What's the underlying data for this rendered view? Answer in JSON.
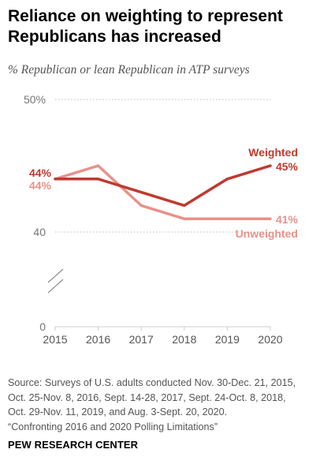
{
  "title_lines": [
    "Reliance on weighting to represent",
    "Republicans has increased"
  ],
  "subtitle": "% Republican or lean Republican in ATP surveys",
  "source_lines": [
    "Source: Surveys of U.S. adults conducted Nov. 30-Dec. 21, 2015,",
    "Oct. 25-Nov. 8, 2016, Sept. 14-28, 2017, Sept. 24-Oct. 8, 2018,",
    "Oct. 29-Nov. 11, 2019, and Aug. 3-Sept. 20, 2020.",
    "“Confronting 2016 and 2020 Polling Limitations”"
  ],
  "organization": "PEW RESEARCH CENTER",
  "colors": {
    "weighted": "#c0392f",
    "unweighted": "#e8928a",
    "grid": "#bcbcbc",
    "axis_label": "#777777",
    "axis_line": "#cccccc"
  },
  "chart_data": {
    "type": "line",
    "x": [
      2015,
      2016,
      2017,
      2018,
      2019,
      2020
    ],
    "y_ticks": [
      "50%",
      "40",
      "0"
    ],
    "y_axis_break": true,
    "series": [
      {
        "name": "Weighted",
        "values": [
          44,
          44,
          43,
          42,
          44,
          45
        ],
        "start_label": "44%",
        "end_label": "45%",
        "color": "#c0392f"
      },
      {
        "name": "Unweighted",
        "values": [
          44,
          45,
          42,
          41,
          41,
          41
        ],
        "start_label": "44%",
        "end_label": "41%",
        "color": "#e8928a"
      }
    ]
  }
}
